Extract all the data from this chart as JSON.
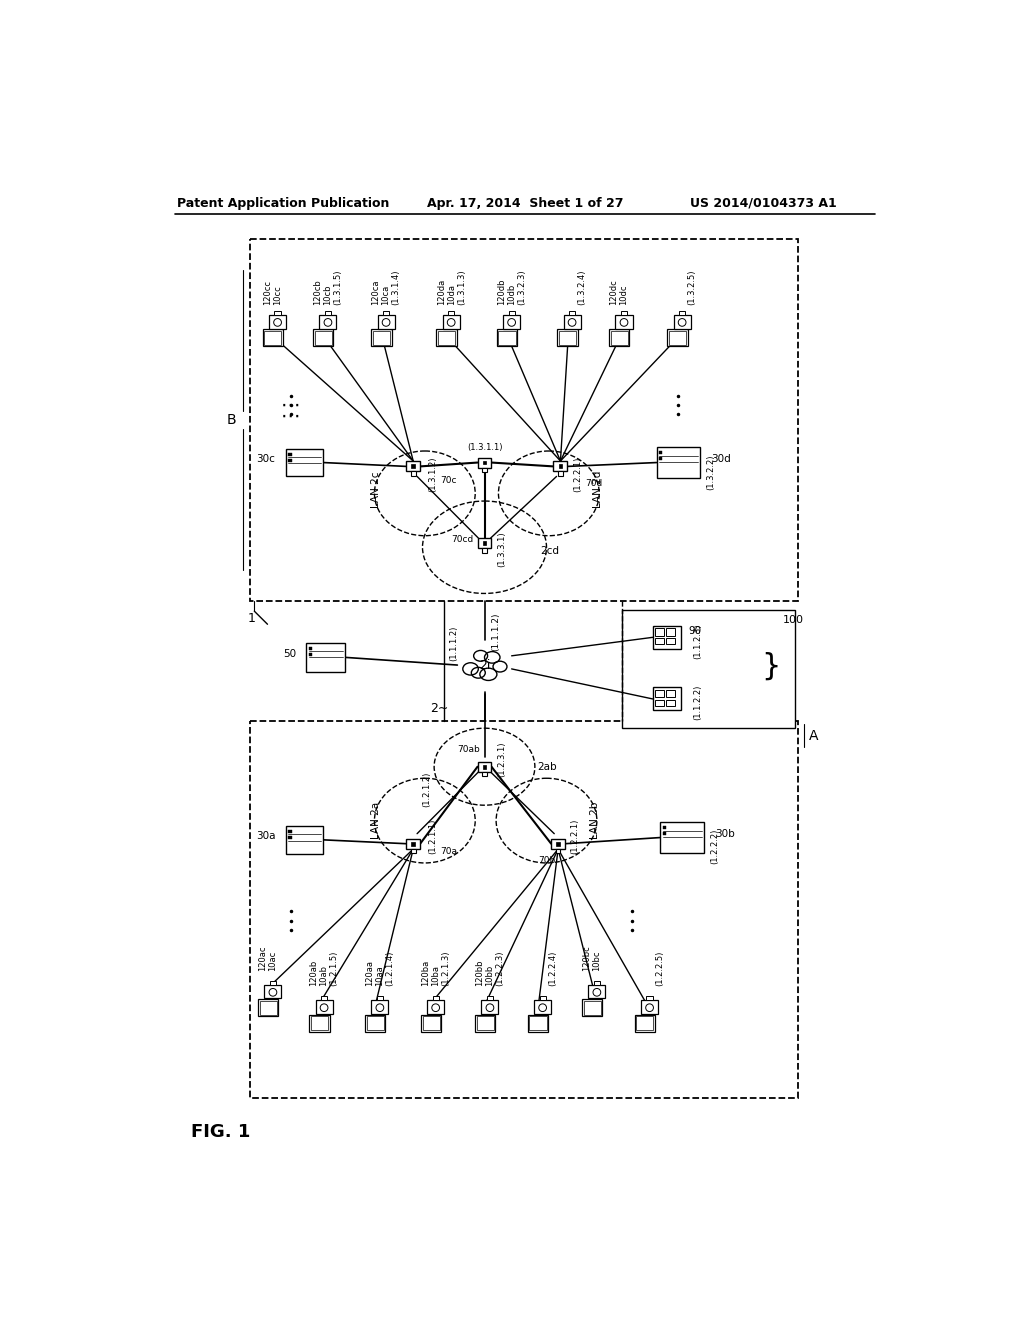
{
  "title_left": "Patent Application Publication",
  "title_mid": "Apr. 17, 2014  Sheet 1 of 27",
  "title_right": "US 2014/0104373 A1",
  "fig_label": "FIG. 1",
  "bg_color": "#ffffff"
}
